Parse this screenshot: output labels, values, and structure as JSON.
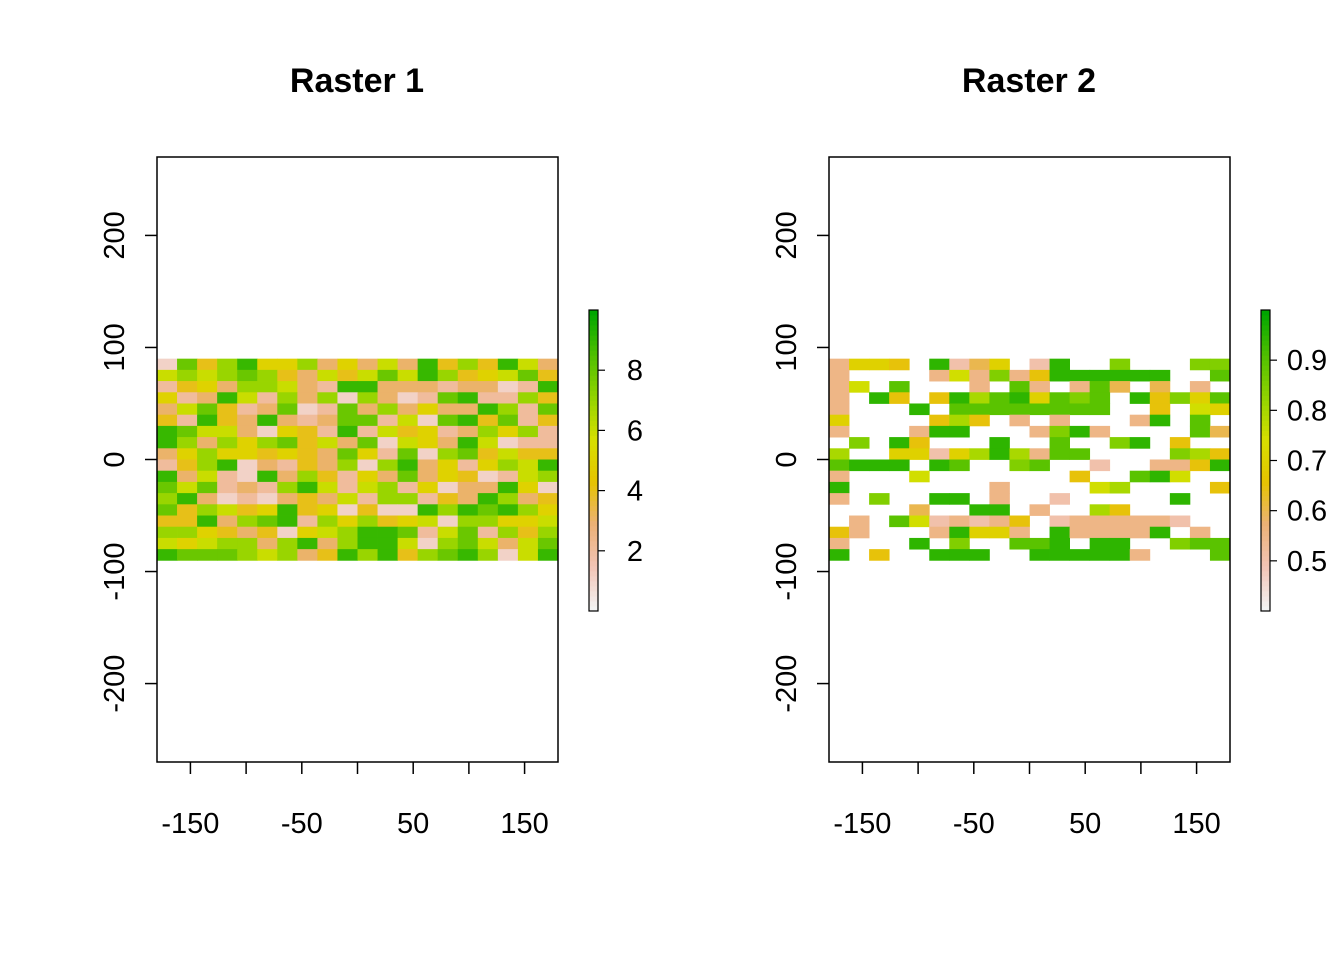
{
  "chart_data": [
    {
      "type": "heatmap",
      "title": "Raster 1",
      "xlabel": "",
      "ylabel": "",
      "xlim": [
        -180,
        180
      ],
      "ylim": [
        -270,
        270
      ],
      "x_ticks": [
        "-150",
        "-50",
        "50",
        "150"
      ],
      "y_ticks": [
        "-200",
        "-100",
        "0",
        "100",
        "200"
      ],
      "grid_extent": {
        "x": [
          -180,
          180
        ],
        "y": [
          -90,
          90
        ]
      },
      "grid_cols": 20,
      "grid_rows": 18,
      "legend_ticks": [
        "2",
        "4",
        "6",
        "8"
      ],
      "value_range": [
        0,
        10
      ],
      "palette": [
        "#f2f2f2",
        "#f2c4b5",
        "#ecb176",
        "#e6c400",
        "#d7df00",
        "#92d400",
        "#4fbf00",
        "#00a600"
      ],
      "values": [
        [
          1,
          8,
          4,
          7,
          9,
          5,
          5,
          7,
          3,
          5,
          3,
          6,
          3,
          9,
          4,
          7,
          4,
          9,
          6,
          3
        ],
        [
          6,
          7,
          6,
          7,
          8,
          7,
          4,
          3,
          6,
          4,
          6,
          8,
          6,
          9,
          7,
          4,
          5,
          6,
          8,
          4
        ],
        [
          2,
          4,
          5,
          3,
          7,
          7,
          6,
          3,
          2,
          9,
          9,
          3,
          3,
          3,
          2,
          3,
          3,
          1,
          2,
          9
        ],
        [
          5,
          2,
          3,
          9,
          6,
          2,
          7,
          3,
          7,
          1,
          7,
          3,
          1,
          2,
          8,
          9,
          2,
          2,
          7,
          4
        ],
        [
          3,
          6,
          8,
          4,
          2,
          3,
          8,
          1,
          2,
          8,
          3,
          7,
          3,
          5,
          3,
          3,
          9,
          7,
          2,
          8
        ],
        [
          4,
          2,
          9,
          4,
          3,
          9,
          3,
          2,
          3,
          8,
          8,
          2,
          6,
          1,
          8,
          9,
          4,
          8,
          2,
          4
        ],
        [
          9,
          8,
          6,
          6,
          3,
          1,
          5,
          4,
          2,
          9,
          2,
          6,
          4,
          5,
          2,
          3,
          7,
          5,
          7,
          2
        ],
        [
          9,
          7,
          3,
          7,
          5,
          7,
          8,
          4,
          6,
          3,
          8,
          1,
          6,
          5,
          3,
          9,
          6,
          1,
          2,
          2
        ],
        [
          3,
          5,
          7,
          5,
          5,
          4,
          5,
          4,
          3,
          8,
          5,
          2,
          8,
          1,
          7,
          8,
          4,
          6,
          4,
          4
        ],
        [
          2,
          4,
          7,
          9,
          1,
          3,
          2,
          4,
          3,
          7,
          1,
          7,
          9,
          3,
          5,
          2,
          5,
          7,
          6,
          9
        ],
        [
          9,
          3,
          6,
          2,
          1,
          9,
          3,
          7,
          4,
          2,
          5,
          3,
          8,
          3,
          5,
          4,
          1,
          2,
          6,
          7
        ],
        [
          8,
          6,
          8,
          2,
          3,
          2,
          7,
          9,
          6,
          2,
          6,
          7,
          2,
          5,
          1,
          3,
          3,
          9,
          5,
          1
        ],
        [
          7,
          9,
          3,
          1,
          2,
          1,
          3,
          4,
          3,
          6,
          2,
          7,
          7,
          2,
          4,
          3,
          9,
          7,
          3,
          4
        ],
        [
          8,
          4,
          7,
          6,
          4,
          5,
          9,
          4,
          5,
          1,
          4,
          1,
          1,
          9,
          7,
          9,
          8,
          9,
          7,
          5
        ],
        [
          4,
          4,
          9,
          3,
          7,
          8,
          9,
          2,
          7,
          5,
          7,
          4,
          5,
          6,
          1,
          7,
          7,
          5,
          5,
          6
        ],
        [
          7,
          7,
          5,
          4,
          3,
          4,
          1,
          5,
          6,
          7,
          9,
          9,
          8,
          2,
          6,
          8,
          2,
          7,
          4,
          7
        ],
        [
          6,
          5,
          6,
          7,
          7,
          3,
          7,
          9,
          3,
          7,
          9,
          9,
          6,
          1,
          7,
          8,
          6,
          3,
          6,
          8
        ],
        [
          9,
          8,
          8,
          8,
          7,
          6,
          7,
          3,
          4,
          9,
          7,
          9,
          4,
          7,
          8,
          9,
          7,
          1,
          6,
          9
        ]
      ]
    },
    {
      "type": "heatmap",
      "title": "Raster 2",
      "xlabel": "",
      "ylabel": "",
      "xlim": [
        -180,
        180
      ],
      "ylim": [
        -270,
        270
      ],
      "x_ticks": [
        "-150",
        "-50",
        "50",
        "150"
      ],
      "y_ticks": [
        "-200",
        "-100",
        "0",
        "100",
        "200"
      ],
      "grid_extent": {
        "x": [
          -180,
          180
        ],
        "y": [
          -90,
          90
        ]
      },
      "grid_cols": 20,
      "grid_rows": 18,
      "legend_ticks": [
        "0.5",
        "0.6",
        "0.7",
        "0.8",
        "0.9"
      ],
      "value_range": [
        0.4,
        1.0
      ],
      "palette": [
        "#f2f2f2",
        "#f2c4b5",
        "#ecb176",
        "#e6c400",
        "#d7df00",
        "#92d400",
        "#4fbf00",
        "#00a600"
      ],
      "values": [
        [
          0.55,
          0.7,
          0.7,
          0.65,
          null,
          0.95,
          0.5,
          0.6,
          0.7,
          null,
          0.5,
          0.95,
          null,
          null,
          0.85,
          null,
          null,
          null,
          0.85,
          0.85
        ],
        [
          0.55,
          null,
          null,
          null,
          null,
          0.55,
          0.75,
          0.55,
          0.85,
          0.55,
          0.65,
          0.95,
          0.95,
          0.95,
          0.95,
          0.95,
          0.95,
          null,
          null,
          0.9
        ],
        [
          0.55,
          0.75,
          null,
          0.9,
          null,
          null,
          null,
          0.55,
          null,
          0.9,
          0.55,
          null,
          0.55,
          0.9,
          0.6,
          null,
          0.6,
          null,
          0.55,
          null
        ],
        [
          0.55,
          null,
          0.95,
          0.65,
          null,
          0.65,
          0.95,
          0.8,
          0.9,
          0.95,
          0.7,
          0.9,
          0.85,
          0.9,
          null,
          0.95,
          0.65,
          0.85,
          0.7,
          0.9
        ],
        [
          0.55,
          null,
          null,
          null,
          0.95,
          null,
          0.9,
          0.9,
          0.9,
          0.9,
          0.9,
          0.9,
          0.9,
          0.9,
          null,
          null,
          0.65,
          null,
          0.75,
          0.7
        ],
        [
          0.7,
          null,
          null,
          null,
          null,
          0.65,
          0.8,
          0.65,
          null,
          0.55,
          null,
          0.55,
          null,
          null,
          null,
          0.55,
          0.95,
          null,
          0.9,
          null
        ],
        [
          0.55,
          null,
          null,
          null,
          0.55,
          0.95,
          0.95,
          null,
          null,
          null,
          0.55,
          0.85,
          0.95,
          0.55,
          null,
          null,
          null,
          null,
          0.9,
          0.6
        ],
        [
          null,
          0.85,
          null,
          0.95,
          0.65,
          null,
          null,
          null,
          0.95,
          null,
          null,
          0.9,
          null,
          null,
          0.85,
          0.95,
          null,
          0.65,
          null,
          null
        ],
        [
          0.8,
          null,
          null,
          0.7,
          0.7,
          0.5,
          0.7,
          0.8,
          0.95,
          0.8,
          0.55,
          0.9,
          0.9,
          null,
          null,
          null,
          null,
          0.85,
          0.8,
          0.65
        ],
        [
          0.9,
          0.95,
          0.95,
          0.95,
          null,
          0.95,
          0.9,
          null,
          null,
          0.85,
          0.9,
          null,
          null,
          0.5,
          null,
          null,
          0.55,
          0.55,
          0.65,
          0.95
        ],
        [
          0.55,
          null,
          null,
          null,
          0.75,
          null,
          null,
          null,
          null,
          null,
          null,
          null,
          0.65,
          null,
          null,
          0.9,
          0.95,
          0.75,
          null,
          null
        ],
        [
          0.95,
          null,
          null,
          null,
          null,
          null,
          null,
          null,
          0.55,
          null,
          null,
          null,
          null,
          0.75,
          0.8,
          null,
          null,
          null,
          null,
          0.65
        ],
        [
          0.55,
          null,
          0.85,
          null,
          null,
          0.95,
          0.95,
          null,
          0.55,
          null,
          null,
          0.5,
          null,
          null,
          null,
          null,
          null,
          0.95,
          null,
          null
        ],
        [
          null,
          null,
          null,
          null,
          0.6,
          null,
          null,
          0.95,
          0.95,
          null,
          0.55,
          null,
          null,
          0.8,
          0.65,
          null,
          null,
          null,
          null,
          null
        ],
        [
          null,
          0.55,
          null,
          0.9,
          0.75,
          0.5,
          0.55,
          0.5,
          0.55,
          0.65,
          null,
          0.5,
          0.55,
          0.55,
          0.55,
          0.55,
          0.55,
          0.5,
          null,
          null
        ],
        [
          0.65,
          0.55,
          null,
          null,
          null,
          0.55,
          0.95,
          0.7,
          0.7,
          0.55,
          null,
          0.95,
          0.55,
          0.55,
          0.55,
          0.55,
          0.95,
          null,
          0.55,
          null
        ],
        [
          0.55,
          null,
          null,
          null,
          0.95,
          null,
          0.85,
          null,
          null,
          0.9,
          0.9,
          0.95,
          null,
          0.95,
          0.95,
          null,
          null,
          0.85,
          0.9,
          0.9
        ],
        [
          0.95,
          null,
          0.65,
          null,
          null,
          0.95,
          0.95,
          0.95,
          null,
          null,
          0.95,
          0.95,
          0.95,
          0.95,
          0.95,
          0.55,
          null,
          null,
          null,
          0.9
        ]
      ]
    }
  ]
}
